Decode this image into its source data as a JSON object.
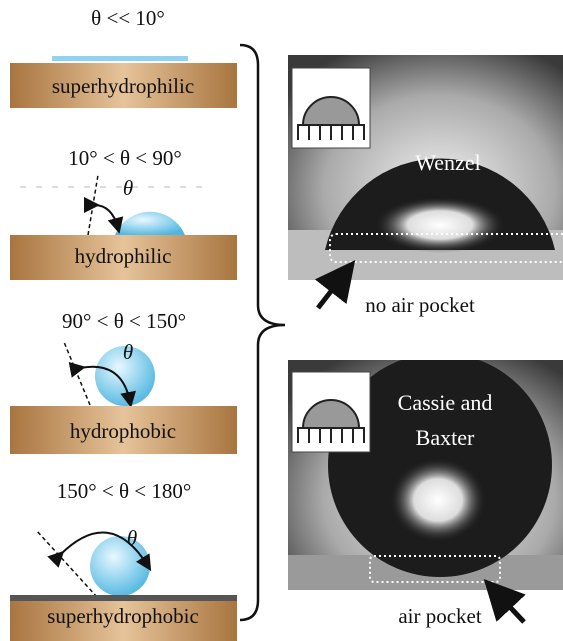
{
  "states": [
    {
      "condition": "θ << 10°",
      "label": "superhydrophilic"
    },
    {
      "condition": "10° < θ < 90°",
      "angle_symbol": "θ",
      "label": "hydrophilic"
    },
    {
      "condition": "90° < θ < 150°",
      "angle_symbol": "θ",
      "label": "hydrophobic"
    },
    {
      "condition": "150° < θ < 180°",
      "angle_symbol": "θ",
      "label": "superhydrophobic"
    }
  ],
  "photos": [
    {
      "label_lines": [
        "Wenzel"
      ],
      "caption": "no air pocket"
    },
    {
      "label_lines": [
        "Cassie and",
        "Baxter"
      ],
      "caption": "air pocket"
    }
  ]
}
